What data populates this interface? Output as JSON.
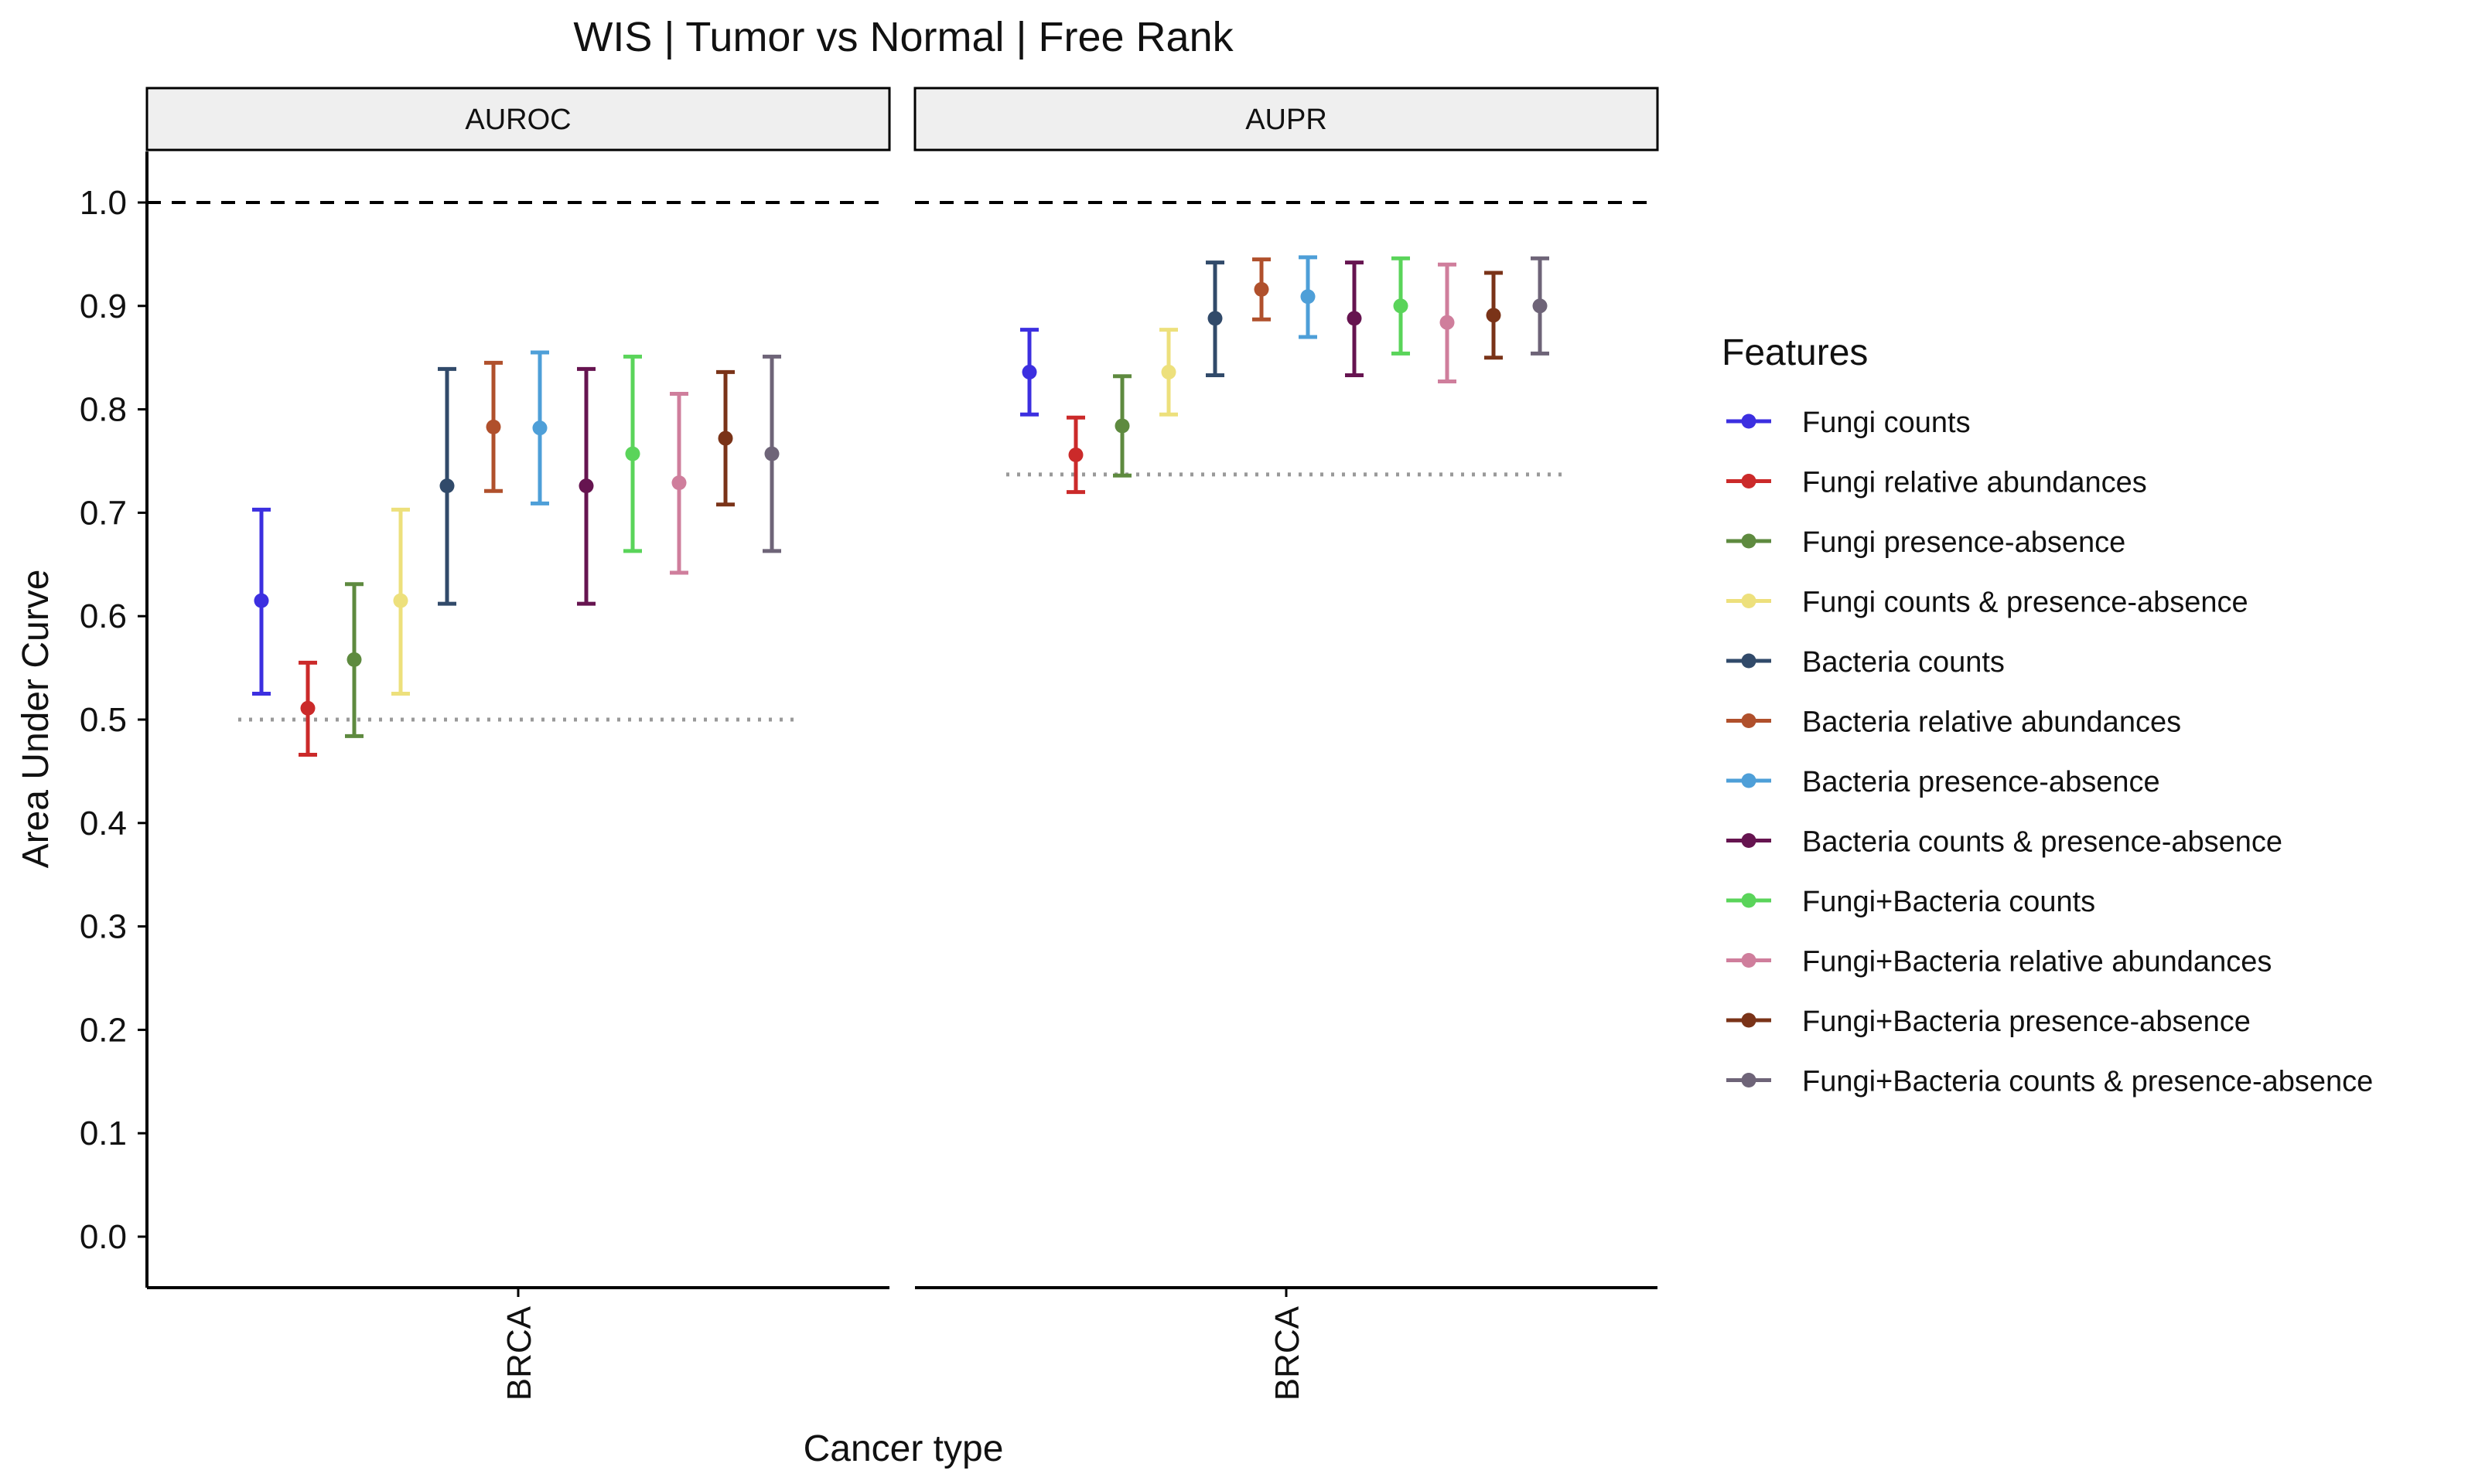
{
  "chart_data": {
    "type": "scatter",
    "title": "WIS | Tumor vs Normal | Free Rank",
    "xlabel": "Cancer type",
    "ylabel": "Area Under Curve",
    "ylim": [
      0.0,
      1.0
    ],
    "yticks": [
      "0.0",
      "0.1",
      "0.2",
      "0.3",
      "0.4",
      "0.5",
      "0.6",
      "0.7",
      "0.8",
      "0.9",
      "1.0"
    ],
    "reference_line": 1.0,
    "grid": false,
    "legend": {
      "title": "Features",
      "position": "right"
    },
    "panels": [
      {
        "label": "AUROC",
        "category": "BRCA",
        "baseline": 0.5,
        "points": [
          {
            "feature": "Fungi counts",
            "value": 0.615,
            "low": 0.525,
            "high": 0.703
          },
          {
            "feature": "Fungi relative abundances",
            "value": 0.511,
            "low": 0.466,
            "high": 0.555
          },
          {
            "feature": "Fungi presence-absence",
            "value": 0.558,
            "low": 0.484,
            "high": 0.631
          },
          {
            "feature": "Fungi counts & presence-absence",
            "value": 0.615,
            "low": 0.525,
            "high": 0.703
          },
          {
            "feature": "Bacteria counts",
            "value": 0.726,
            "low": 0.612,
            "high": 0.839
          },
          {
            "feature": "Bacteria relative abundances",
            "value": 0.783,
            "low": 0.721,
            "high": 0.845
          },
          {
            "feature": "Bacteria presence-absence",
            "value": 0.782,
            "low": 0.709,
            "high": 0.855
          },
          {
            "feature": "Bacteria counts & presence-absence",
            "value": 0.726,
            "low": 0.612,
            "high": 0.839
          },
          {
            "feature": "Fungi+Bacteria counts",
            "value": 0.757,
            "low": 0.663,
            "high": 0.851
          },
          {
            "feature": "Fungi+Bacteria relative abundances",
            "value": 0.729,
            "low": 0.642,
            "high": 0.815
          },
          {
            "feature": "Fungi+Bacteria presence-absence",
            "value": 0.772,
            "low": 0.708,
            "high": 0.836
          },
          {
            "feature": "Fungi+Bacteria counts & presence-absence",
            "value": 0.757,
            "low": 0.663,
            "high": 0.851
          }
        ]
      },
      {
        "label": "AUPR",
        "category": "BRCA",
        "baseline": 0.737,
        "points": [
          {
            "feature": "Fungi counts",
            "value": 0.836,
            "low": 0.795,
            "high": 0.877
          },
          {
            "feature": "Fungi relative abundances",
            "value": 0.756,
            "low": 0.72,
            "high": 0.792
          },
          {
            "feature": "Fungi presence-absence",
            "value": 0.784,
            "low": 0.736,
            "high": 0.832
          },
          {
            "feature": "Fungi counts & presence-absence",
            "value": 0.836,
            "low": 0.795,
            "high": 0.877
          },
          {
            "feature": "Bacteria counts",
            "value": 0.888,
            "low": 0.833,
            "high": 0.942
          },
          {
            "feature": "Bacteria relative abundances",
            "value": 0.916,
            "low": 0.887,
            "high": 0.945
          },
          {
            "feature": "Bacteria presence-absence",
            "value": 0.909,
            "low": 0.87,
            "high": 0.947
          },
          {
            "feature": "Bacteria counts & presence-absence",
            "value": 0.888,
            "low": 0.833,
            "high": 0.942
          },
          {
            "feature": "Fungi+Bacteria counts",
            "value": 0.9,
            "low": 0.854,
            "high": 0.946
          },
          {
            "feature": "Fungi+Bacteria relative abundances",
            "value": 0.884,
            "low": 0.827,
            "high": 0.94
          },
          {
            "feature": "Fungi+Bacteria presence-absence",
            "value": 0.891,
            "low": 0.85,
            "high": 0.932
          },
          {
            "feature": "Fungi+Bacteria counts & presence-absence",
            "value": 0.9,
            "low": 0.854,
            "high": 0.946
          }
        ]
      }
    ],
    "series": [
      {
        "name": "Fungi counts",
        "color": "#3c2fe0"
      },
      {
        "name": "Fungi relative abundances",
        "color": "#cb2a2a"
      },
      {
        "name": "Fungi presence-absence",
        "color": "#5e8a3f"
      },
      {
        "name": "Fungi counts & presence-absence",
        "color": "#ede07c"
      },
      {
        "name": "Bacteria counts",
        "color": "#314a6a"
      },
      {
        "name": "Bacteria relative abundances",
        "color": "#b0502c"
      },
      {
        "name": "Bacteria presence-absence",
        "color": "#4e9fd8"
      },
      {
        "name": "Bacteria counts & presence-absence",
        "color": "#661450"
      },
      {
        "name": "Fungi+Bacteria counts",
        "color": "#5ad45a"
      },
      {
        "name": "Fungi+Bacteria relative abundances",
        "color": "#cf7e9c"
      },
      {
        "name": "Fungi+Bacteria presence-absence",
        "color": "#7a3318"
      },
      {
        "name": "Fungi+Bacteria counts & presence-absence",
        "color": "#6e6478"
      }
    ]
  }
}
